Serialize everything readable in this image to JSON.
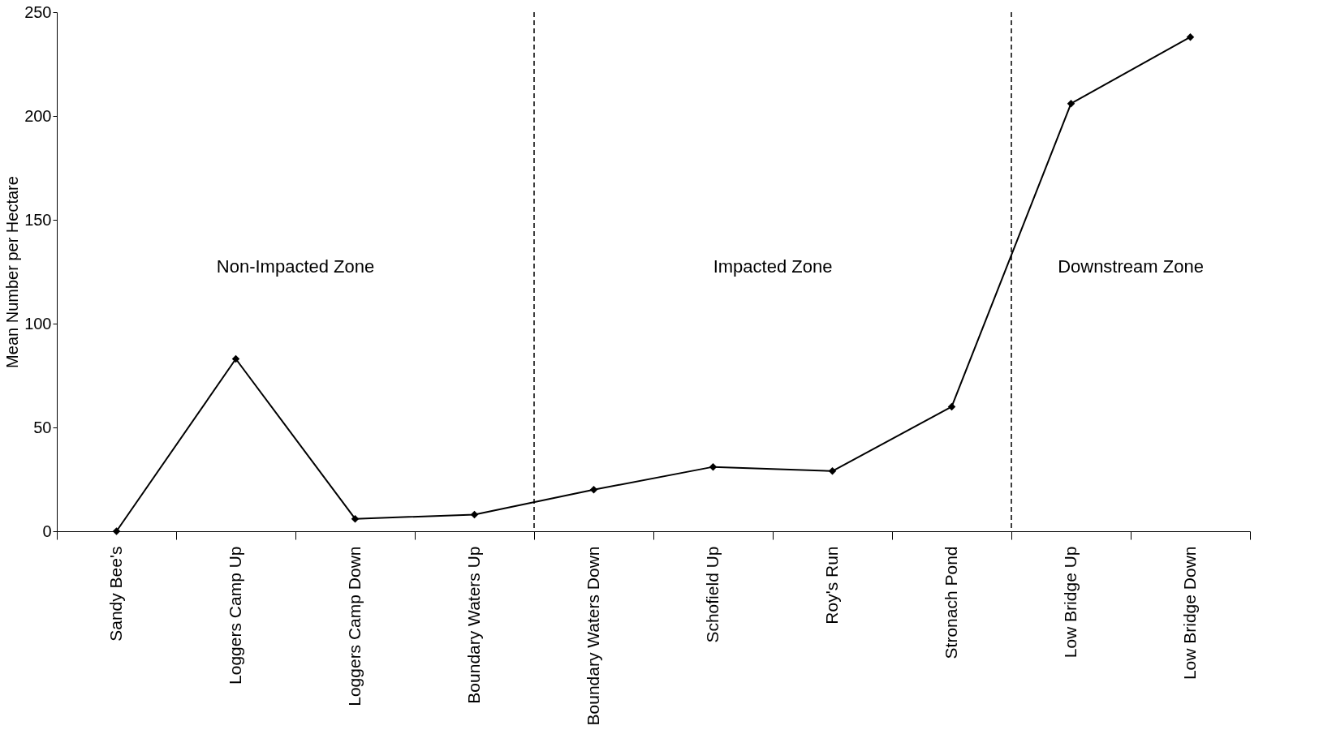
{
  "chart_data": {
    "type": "line",
    "ylabel": "Mean Number per Hectare",
    "categories": [
      "Sandy Bee's",
      "Loggers Camp Up",
      "Loggers Camp Down",
      "Boundary Waters Up",
      "Boundary Waters Down",
      "Schofield Up",
      "Roy's Run",
      "Stronach Pond",
      "Low Bridge Up",
      "Low Bridge Down"
    ],
    "series": [
      {
        "color": "#000000",
        "values": [
          0,
          83,
          6,
          8,
          20,
          31,
          29,
          60,
          206,
          238
        ]
      }
    ],
    "ylim": [
      0,
      250
    ],
    "yticks": [
      0,
      50,
      100,
      150,
      200,
      250
    ],
    "annotations": [
      "Non-Impacted Zone",
      "Impacted Zone",
      "Downstream Zone"
    ],
    "marker": "diamond",
    "line_style": "solid",
    "grid": false
  }
}
